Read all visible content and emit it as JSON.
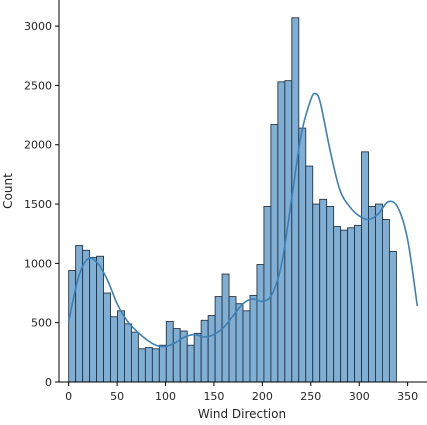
{
  "chart_data": {
    "type": "bar",
    "subtype": "histogram-with-kde",
    "title": "",
    "xlabel": "Wind Direction",
    "ylabel": "Count",
    "xlim": [
      -10,
      370
    ],
    "ylim": [
      0,
      3220
    ],
    "xticks": [
      0,
      50,
      100,
      150,
      200,
      250,
      300,
      350
    ],
    "yticks": [
      0,
      500,
      1000,
      1500,
      2000,
      2500,
      3000
    ],
    "bin_edges_start": 0,
    "bin_width": 7.2,
    "counts": [
      940,
      1150,
      1110,
      1050,
      1060,
      750,
      550,
      600,
      490,
      420,
      280,
      290,
      280,
      310,
      510,
      450,
      430,
      310,
      410,
      520,
      560,
      720,
      910,
      720,
      660,
      600,
      730,
      990,
      1480,
      2170,
      2530,
      2540,
      3070,
      2140,
      1820,
      1500,
      1540,
      1480,
      1310,
      1280,
      1300,
      1320,
      1940,
      1480,
      1500,
      1370,
      1100
    ],
    "kde": {
      "x": [
        0,
        10,
        20,
        30,
        40,
        50,
        60,
        70,
        80,
        90,
        100,
        110,
        120,
        130,
        140,
        150,
        160,
        170,
        180,
        190,
        200,
        210,
        220,
        230,
        240,
        250,
        255,
        260,
        270,
        280,
        290,
        300,
        310,
        320,
        330,
        340,
        350,
        360
      ],
      "y": [
        510,
        880,
        1040,
        1000,
        860,
        660,
        520,
        430,
        360,
        310,
        300,
        330,
        380,
        400,
        380,
        400,
        460,
        560,
        660,
        700,
        680,
        740,
        1000,
        1530,
        2080,
        2380,
        2430,
        2350,
        1950,
        1620,
        1480,
        1400,
        1370,
        1420,
        1520,
        1470,
        1200,
        640
      ]
    },
    "bar_color": "#80afd6",
    "edge_color": "#2a3440",
    "line_color": "#3b80b7"
  }
}
